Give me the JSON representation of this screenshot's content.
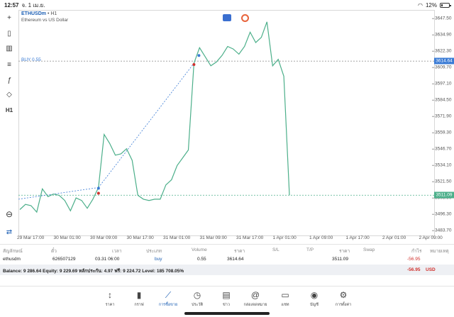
{
  "status_bar": {
    "time": "12:57",
    "date": "จ. 1 เม.ย.",
    "battery": "12%"
  },
  "toolbar": {
    "items": [
      {
        "name": "crosshair-icon",
        "glyph": "+"
      },
      {
        "name": "candlestick-icon",
        "glyph": "▯"
      },
      {
        "name": "chart-type-icon",
        "glyph": "▥"
      },
      {
        "name": "indicators-icon",
        "glyph": "≡"
      },
      {
        "name": "function-icon",
        "glyph": "ƒ"
      },
      {
        "name": "objects-icon",
        "glyph": "◇"
      },
      {
        "name": "timeframe-button",
        "glyph": "H1"
      }
    ],
    "bottom_items": [
      {
        "name": "zoom-icon",
        "glyph": "⊖"
      },
      {
        "name": "one-click-trading-icon",
        "glyph": "⇄"
      }
    ]
  },
  "chart": {
    "symbol": "ETHUSDm",
    "timeframe": "• H1",
    "description": "Ethereum vs US Dollar",
    "buy_label": "BUY 0.55",
    "current_price": "3614.64",
    "bid_price": "3511.09",
    "price_axis": [
      "3647.50",
      "3634.90",
      "3622.30",
      "3609.70",
      "3597.10",
      "3584.50",
      "3571.90",
      "3559.30",
      "3546.70",
      "3534.10",
      "3521.50",
      "3508.90",
      "3496.30",
      "3483.70"
    ],
    "time_axis": [
      "29 Mar 17:00",
      "30 Mar 01:00",
      "30 Mar 09:00",
      "30 Mar 17:00",
      "31 Mar 01:00",
      "31 Mar 09:00",
      "31 Mar 17:00",
      "1 Apr 01:00",
      "1 Apr 09:00",
      "1 Apr 17:00",
      "2 Apr 01:00",
      "2 Apr 09:00"
    ],
    "colors": {
      "line": "#4caf8a",
      "buy": "#3a7bd5",
      "sell": "#d0312d"
    }
  },
  "chart_data": {
    "type": "line",
    "series": [
      {
        "values": [
          3500,
          3504,
          3503,
          3498,
          3516,
          3510,
          3512,
          3511,
          3507,
          3499,
          3509,
          3507,
          3501,
          3508,
          3517,
          3558,
          3551,
          3542,
          3543,
          3547,
          3538,
          3511,
          3508,
          3507,
          3508,
          3508,
          3519,
          3523,
          3534,
          3540,
          3546,
          3613,
          3625,
          3618,
          3611,
          3614,
          3619,
          3626,
          3624,
          3620,
          3626,
          3637,
          3629,
          3633,
          3645,
          3611,
          3616,
          3603,
          3511
        ]
      }
    ],
    "ylim": [
      3480,
      3652
    ]
  },
  "table": {
    "headers": [
      "สัญลักษณ์",
      "ตั๋ว",
      "เวลา",
      "ประเภท",
      "Volume",
      "ราคา",
      "S/L",
      "T/P",
      "ราคา",
      "Swap",
      "กำไร",
      "หมายเหตุ"
    ],
    "row": {
      "symbol": "ethusdm",
      "ticket": "626507129",
      "time": "03.31 06:00",
      "type": "buy",
      "volume": "0.55",
      "open_price": "3614.64",
      "current_price": "3511.09",
      "profit": "-56.95"
    },
    "balance_text": "Balance: 9 286.64 Equity: 9 229.69 หลักประกัน: 4.97 ฟรี: 9 224.72 Level: 185 708.05%",
    "total_profit": "-56.95",
    "currency": "USD"
  },
  "nav": {
    "items": [
      {
        "name": "nav-quotes",
        "icon": "↕",
        "label": "ราคา"
      },
      {
        "name": "nav-chart",
        "icon": "▮",
        "label": "กราฟ"
      },
      {
        "name": "nav-trade",
        "icon": "⟋",
        "label": "การซื้อขาย"
      },
      {
        "name": "nav-history",
        "icon": "◷",
        "label": "ประวัติ"
      },
      {
        "name": "nav-news",
        "icon": "▤",
        "label": "ข่าว"
      },
      {
        "name": "nav-mailbox",
        "icon": "@",
        "label": "กล่องจดหมาย"
      },
      {
        "name": "nav-chat",
        "icon": "▭",
        "label": "แชท"
      },
      {
        "name": "nav-accounts",
        "icon": "◉",
        "label": "บัญชี"
      },
      {
        "name": "nav-settings",
        "icon": "⚙",
        "label": "การตั้งค่า"
      }
    ]
  }
}
